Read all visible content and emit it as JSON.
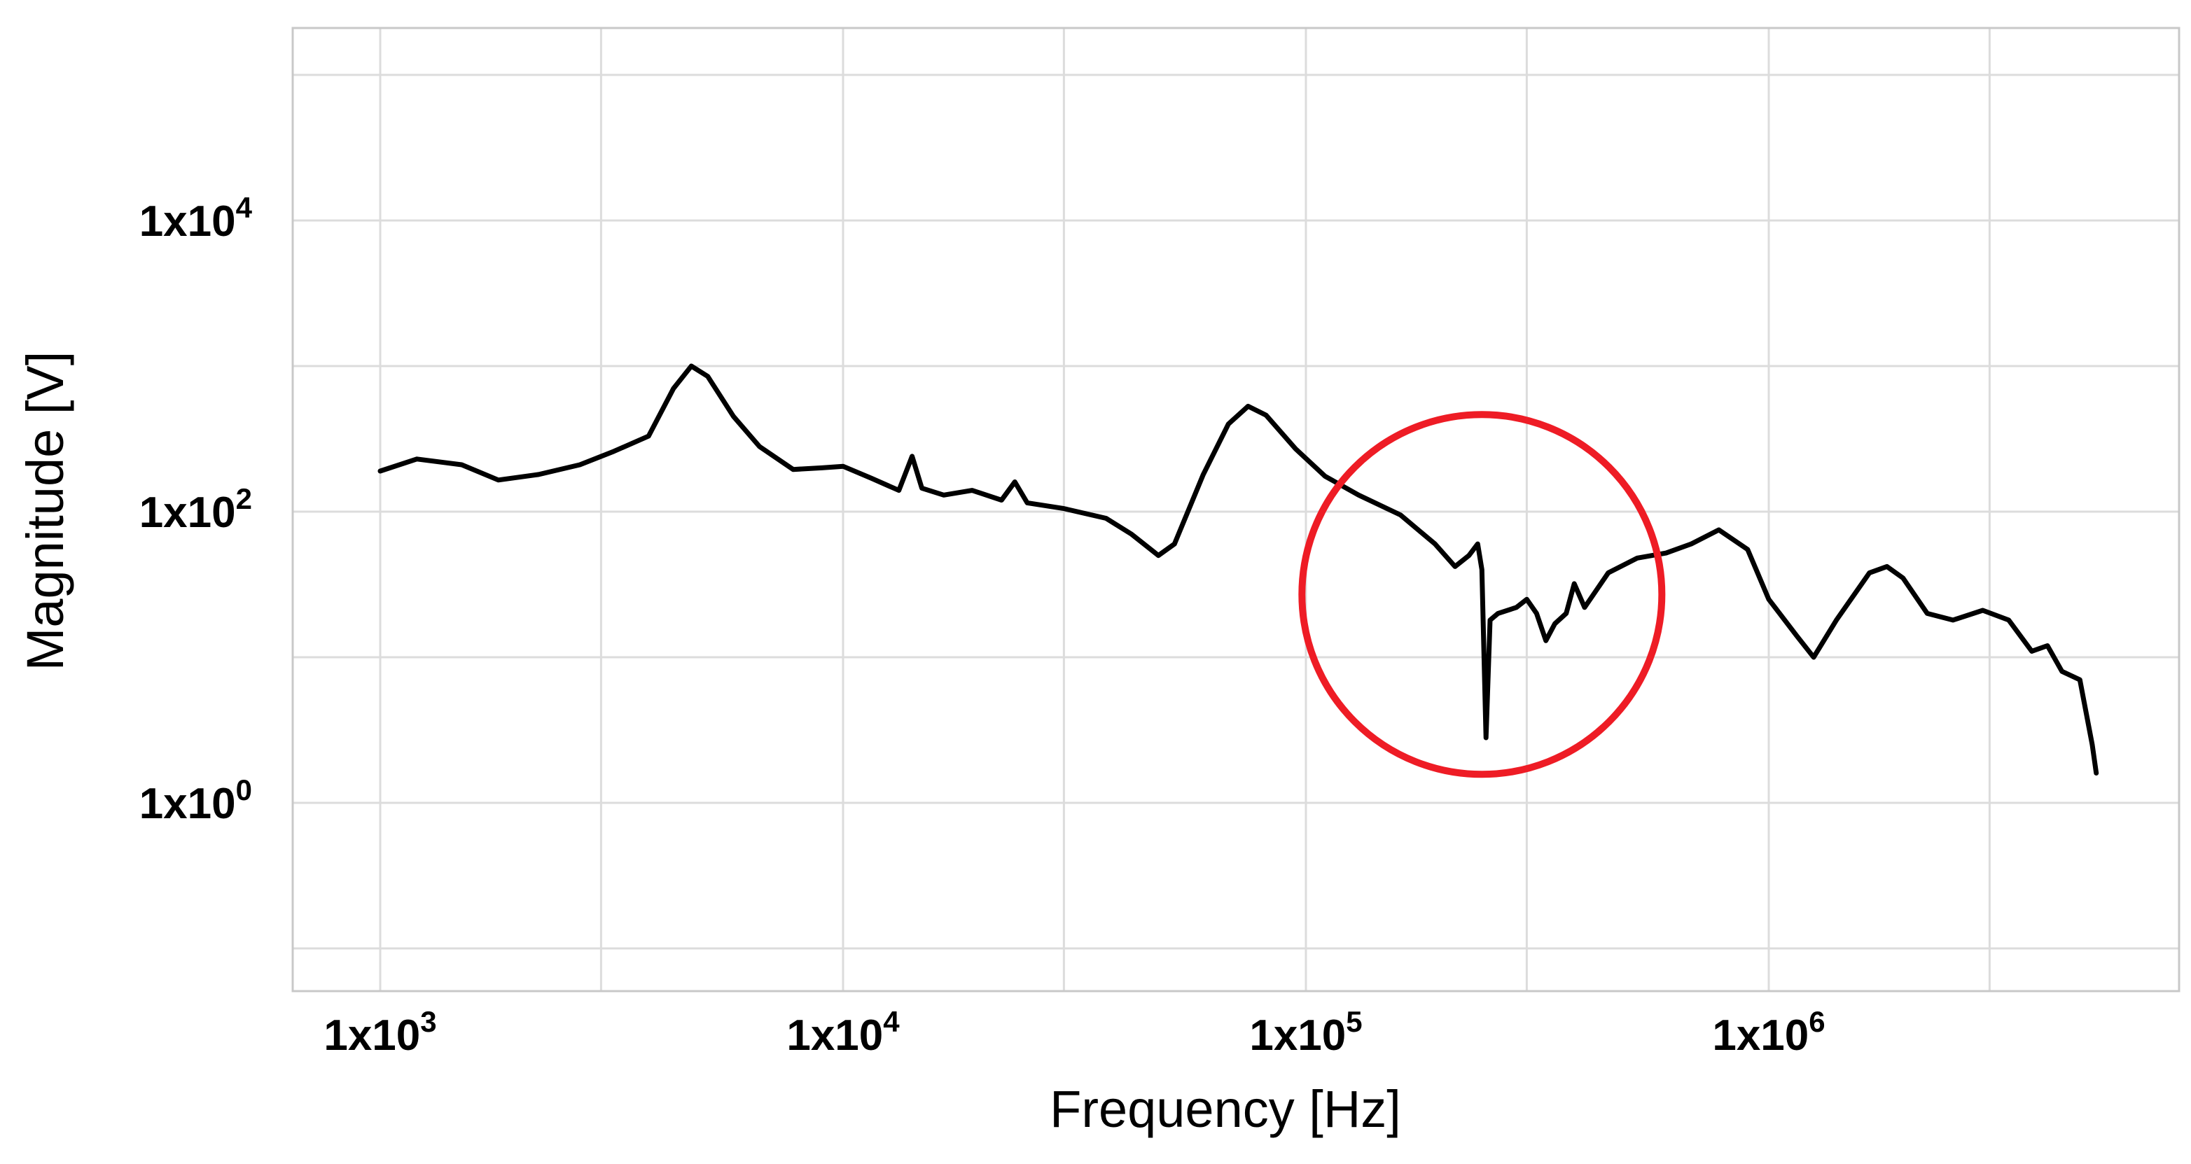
{
  "chart_data": {
    "type": "line",
    "title": "",
    "xlabel": "Frequency [Hz]",
    "ylabel": "Magnitude [V]",
    "x_scale": "log",
    "y_scale": "log",
    "xlim": [
      700,
      7000000
    ],
    "ylim": [
      0.01,
      1000000
    ],
    "grid": true,
    "x_ticks": [
      {
        "value": 1000,
        "base": "1x10",
        "exp": "3"
      },
      {
        "value": 10000,
        "base": "1x10",
        "exp": "4"
      },
      {
        "value": 100000,
        "base": "1x10",
        "exp": "5"
      },
      {
        "value": 1000000,
        "base": "1x10",
        "exp": "6"
      }
    ],
    "y_ticks": [
      {
        "value": 1,
        "base": "1x10",
        "exp": "0"
      },
      {
        "value": 100,
        "base": "1x10",
        "exp": "2"
      },
      {
        "value": 10000,
        "base": "1x10",
        "exp": "4"
      }
    ],
    "x_minor_gridlines": [
      3000,
      30000,
      300000,
      3000000
    ],
    "y_minor_gridlines": [
      0.1,
      10,
      1000,
      100000
    ],
    "series": [
      {
        "color": "#000000",
        "points": [
          [
            1000,
            190
          ],
          [
            1200,
            230
          ],
          [
            1500,
            210
          ],
          [
            1800,
            165
          ],
          [
            2200,
            180
          ],
          [
            2700,
            210
          ],
          [
            3200,
            260
          ],
          [
            3800,
            330
          ],
          [
            4300,
            700
          ],
          [
            4700,
            1000
          ],
          [
            5100,
            850
          ],
          [
            5800,
            450
          ],
          [
            6600,
            280
          ],
          [
            7800,
            195
          ],
          [
            9000,
            200
          ],
          [
            10000,
            205
          ],
          [
            11500,
            170
          ],
          [
            13200,
            140
          ],
          [
            14100,
            240
          ],
          [
            14800,
            145
          ],
          [
            16500,
            130
          ],
          [
            19000,
            140
          ],
          [
            22000,
            120
          ],
          [
            23500,
            160
          ],
          [
            25000,
            115
          ],
          [
            30000,
            105
          ],
          [
            37000,
            90
          ],
          [
            42000,
            70
          ],
          [
            48000,
            50
          ],
          [
            52000,
            60
          ],
          [
            60000,
            180
          ],
          [
            68000,
            400
          ],
          [
            75000,
            530
          ],
          [
            82000,
            460
          ],
          [
            95000,
            270
          ],
          [
            110000,
            175
          ],
          [
            130000,
            130
          ],
          [
            160000,
            95
          ],
          [
            190000,
            60
          ],
          [
            210000,
            42
          ],
          [
            225000,
            50
          ],
          [
            235000,
            60
          ],
          [
            240000,
            40
          ],
          [
            245000,
            2.8
          ],
          [
            250000,
            18
          ],
          [
            260000,
            20
          ],
          [
            285000,
            22
          ],
          [
            300000,
            25
          ],
          [
            315000,
            20
          ],
          [
            330000,
            13
          ],
          [
            345000,
            17
          ],
          [
            365000,
            20
          ],
          [
            380000,
            32
          ],
          [
            400000,
            22
          ],
          [
            450000,
            38
          ],
          [
            520000,
            48
          ],
          [
            600000,
            52
          ],
          [
            680000,
            60
          ],
          [
            780000,
            75
          ],
          [
            900000,
            55
          ],
          [
            1000000,
            25
          ],
          [
            1150000,
            14
          ],
          [
            1250000,
            10
          ],
          [
            1400000,
            18
          ],
          [
            1650000,
            38
          ],
          [
            1800000,
            42
          ],
          [
            1950000,
            35
          ],
          [
            2200000,
            20
          ],
          [
            2500000,
            18
          ],
          [
            2900000,
            21
          ],
          [
            3300000,
            18
          ],
          [
            3700000,
            11
          ],
          [
            4000000,
            12
          ],
          [
            4300000,
            8
          ],
          [
            4700000,
            7
          ],
          [
            5000000,
            2.5
          ],
          [
            5100000,
            1.6
          ]
        ]
      }
    ],
    "annotation": {
      "type": "circle",
      "color": "#ee1c25",
      "center": [
        240000,
        27
      ]
    }
  }
}
